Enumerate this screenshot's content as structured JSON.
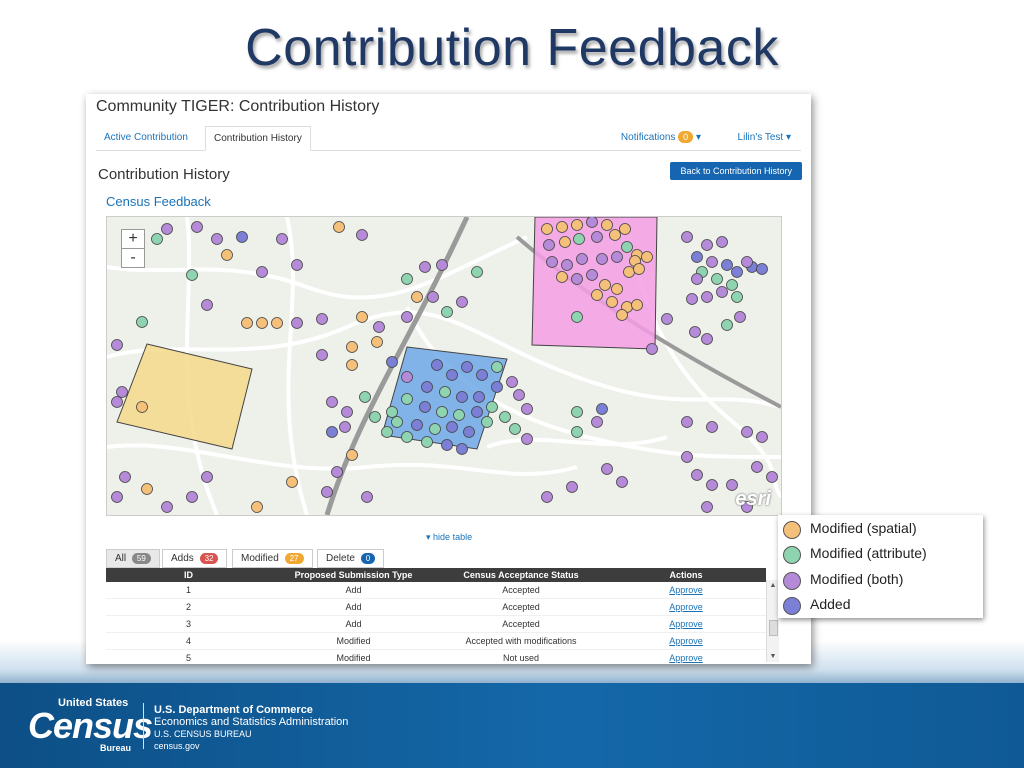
{
  "slide": {
    "title": "Contribution Feedback"
  },
  "app": {
    "title": "Community TIGER: Contribution History",
    "tabs": [
      {
        "label": "Active Contribution"
      },
      {
        "label": "Contribution History"
      }
    ],
    "notifications": {
      "label": "Notifications",
      "count": "0"
    },
    "user": {
      "label": "Lilin's Test"
    },
    "section_title": "Contribution History",
    "back_button": "Back to Contribution History",
    "census_feedback": "Census Feedback",
    "map": {
      "zoom_in": "+",
      "zoom_out": "-",
      "attribution": "esri"
    },
    "hide_table": "hide table",
    "filters": [
      {
        "label": "All",
        "count": "59",
        "color": "#888888"
      },
      {
        "label": "Adds",
        "count": "32",
        "color": "#d9534f"
      },
      {
        "label": "Modified",
        "count": "27",
        "color": "#f0a830"
      },
      {
        "label": "Delete",
        "count": "0",
        "color": "#1565b0"
      }
    ],
    "table": {
      "headers": [
        "ID",
        "Proposed Submission Type",
        "Census Acceptance Status",
        "Actions"
      ],
      "rows": [
        {
          "id": "1",
          "type": "Add",
          "status": "Accepted",
          "action": "Approve"
        },
        {
          "id": "2",
          "type": "Add",
          "status": "Accepted",
          "action": "Approve"
        },
        {
          "id": "3",
          "type": "Add",
          "status": "Accepted",
          "action": "Approve"
        },
        {
          "id": "4",
          "type": "Modified",
          "status": "Accepted with modifications",
          "action": "Approve"
        },
        {
          "id": "5",
          "type": "Modified",
          "status": "Not used",
          "action": "Approve"
        }
      ]
    }
  },
  "legend": [
    {
      "label": "Modified (spatial)",
      "color": "#f5c07a"
    },
    {
      "label": "Modified (attribute)",
      "color": "#8fd4b0"
    },
    {
      "label": "Modified (both)",
      "color": "#b58ad8"
    },
    {
      "label": "Added",
      "color": "#7b7fd6"
    }
  ],
  "footer": {
    "logo_top": "United States",
    "logo_main": "Census",
    "logo_bureau": "Bureau",
    "dept_line1": "U.S. Department of Commerce",
    "dept_line2": "Economics and Statistics Administration",
    "dept_line3": "U.S. CENSUS BUREAU",
    "dept_line4": "census.gov"
  }
}
